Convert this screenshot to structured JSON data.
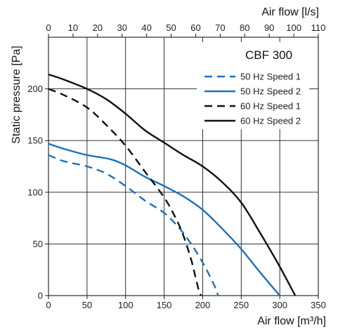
{
  "chart_data": {
    "type": "line",
    "annotation": "CBF 300",
    "xlabel_bottom": "Air flow [m³/h]",
    "xlabel_top": "Air flow [l/s]",
    "ylabel": "Static pressure [Pa]",
    "xlim": [
      0,
      350
    ],
    "ylim": [
      0,
      250
    ],
    "xlim_top": [
      0,
      110
    ],
    "xticks_bottom": [
      0,
      50,
      100,
      150,
      200,
      250,
      300,
      350
    ],
    "xticks_top": [
      0,
      10,
      20,
      30,
      40,
      50,
      60,
      70,
      80,
      90,
      100,
      110
    ],
    "yticks": [
      0,
      50,
      100,
      150,
      200
    ],
    "grid": true,
    "legend_position": "top-right",
    "series": [
      {
        "name": "50 Hz Speed 1",
        "color": "#1a72bf",
        "style": "dashed",
        "x": [
          0,
          20,
          50,
          75,
          100,
          125,
          150,
          170,
          185,
          200,
          215,
          220
        ],
        "y": [
          136,
          130,
          125,
          118,
          106,
          92,
          80,
          65,
          50,
          32,
          10,
          0
        ]
      },
      {
        "name": "50 Hz Speed 2",
        "color": "#1a72bf",
        "style": "solid",
        "x": [
          0,
          20,
          50,
          80,
          100,
          125,
          150,
          175,
          200,
          225,
          250,
          275,
          300
        ],
        "y": [
          147,
          142,
          136,
          132,
          126,
          115,
          106,
          96,
          83,
          65,
          45,
          22,
          0
        ]
      },
      {
        "name": "60 Hz Speed 1",
        "color": "#111111",
        "style": "dashed",
        "x": [
          0,
          20,
          50,
          75,
          100,
          125,
          150,
          165,
          175,
          185,
          190,
          195,
          198
        ],
        "y": [
          200,
          194,
          182,
          165,
          145,
          120,
          95,
          75,
          58,
          35,
          20,
          5,
          0
        ]
      },
      {
        "name": "60 Hz Speed 2",
        "color": "#111111",
        "style": "solid",
        "x": [
          0,
          20,
          50,
          75,
          100,
          125,
          150,
          175,
          200,
          225,
          250,
          275,
          300,
          320
        ],
        "y": [
          214,
          209,
          200,
          190,
          176,
          160,
          148,
          136,
          125,
          110,
          90,
          60,
          28,
          0
        ]
      }
    ]
  }
}
